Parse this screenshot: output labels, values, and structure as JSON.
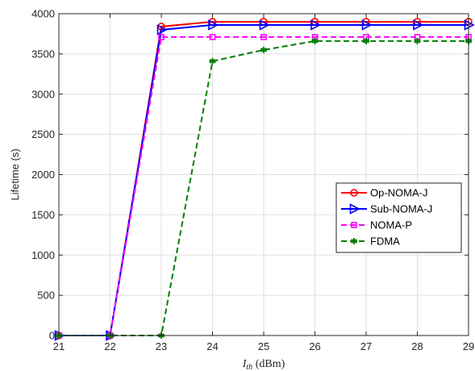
{
  "chart_data": {
    "type": "line",
    "title": "",
    "xlabel_symbol": "I",
    "xlabel_subscript": "th",
    "xlabel_unit": " (dBm)",
    "ylabel": "Lifetime (s)",
    "x": [
      21,
      22,
      23,
      24,
      25,
      26,
      27,
      28,
      29
    ],
    "xlim": [
      21,
      29
    ],
    "ylim": [
      0,
      4000
    ],
    "xticks": [
      "21",
      "22",
      "23",
      "24",
      "25",
      "26",
      "27",
      "28",
      "29"
    ],
    "yticks": [
      "0",
      "500",
      "1000",
      "1500",
      "2000",
      "2500",
      "3000",
      "3500",
      "4000"
    ],
    "grid": true,
    "legend_position": "center-right",
    "series": [
      {
        "name": "Op-NOMA-J",
        "color": "#ff0000",
        "marker": "circle",
        "dash": "solid",
        "values": [
          0,
          0,
          3840,
          3900,
          3900,
          3900,
          3900,
          3900,
          3900
        ]
      },
      {
        "name": "Sub-NOMA-J",
        "color": "#0000ff",
        "marker": "triangle-right",
        "dash": "solid",
        "values": [
          0,
          0,
          3800,
          3860,
          3860,
          3860,
          3860,
          3860,
          3860
        ]
      },
      {
        "name": "NOMA-P",
        "color": "#ff00ff",
        "marker": "square",
        "dash": "dashed",
        "values": [
          0,
          0,
          3710,
          3710,
          3710,
          3710,
          3710,
          3710,
          3710
        ]
      },
      {
        "name": "FDMA",
        "color": "#007f00",
        "marker": "asterisk",
        "dash": "dashed",
        "values": [
          0,
          0,
          0,
          3410,
          3550,
          3660,
          3660,
          3660,
          3660
        ]
      }
    ]
  }
}
